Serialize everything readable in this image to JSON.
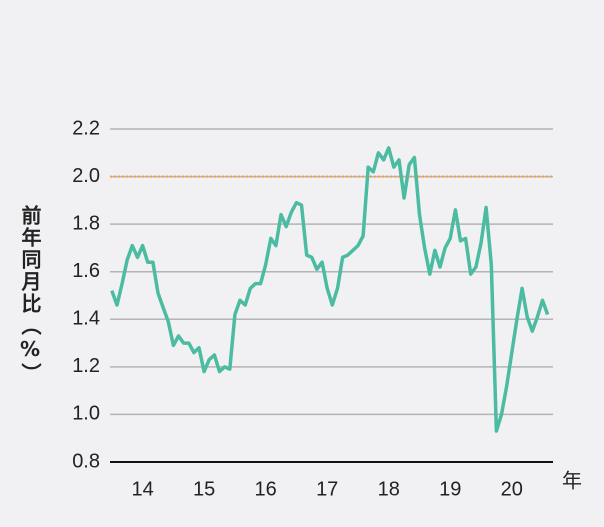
{
  "chart_data": {
    "type": "line",
    "y_label": "前年同月比（%）",
    "x_label": "年",
    "x": [
      14,
      14.083,
      14.167,
      14.25,
      14.333,
      14.417,
      14.5,
      14.583,
      14.667,
      14.75,
      14.833,
      14.917,
      15,
      15.083,
      15.167,
      15.25,
      15.333,
      15.417,
      15.5,
      15.583,
      15.667,
      15.75,
      15.833,
      15.917,
      16,
      16.083,
      16.167,
      16.25,
      16.333,
      16.417,
      16.5,
      16.583,
      16.667,
      16.75,
      16.833,
      16.917,
      17,
      17.083,
      17.167,
      17.25,
      17.333,
      17.417,
      17.5,
      17.583,
      17.667,
      17.75,
      17.833,
      17.917,
      18,
      18.083,
      18.167,
      18.25,
      18.333,
      18.417,
      18.5,
      18.583,
      18.667,
      18.75,
      18.833,
      18.917,
      19,
      19.083,
      19.167,
      19.25,
      19.333,
      19.417,
      19.5,
      19.583,
      19.667,
      19.75,
      19.833,
      19.917,
      20,
      20.083,
      20.167,
      20.25,
      20.333,
      20.417,
      20.5,
      20.583,
      20.667,
      20.75,
      20.833,
      20.917,
      21,
      21.083
    ],
    "series": [
      {
        "color": "#4bbba2",
        "values": [
          1.52,
          1.46,
          1.55,
          1.65,
          1.71,
          1.66,
          1.71,
          1.64,
          1.64,
          1.51,
          1.45,
          1.39,
          1.29,
          1.33,
          1.3,
          1.3,
          1.26,
          1.28,
          1.18,
          1.23,
          1.25,
          1.18,
          1.2,
          1.19,
          1.42,
          1.48,
          1.46,
          1.53,
          1.55,
          1.55,
          1.63,
          1.74,
          1.71,
          1.84,
          1.79,
          1.85,
          1.89,
          1.88,
          1.67,
          1.66,
          1.61,
          1.64,
          1.53,
          1.46,
          1.53,
          1.66,
          1.67,
          1.69,
          1.71,
          1.75,
          2.04,
          2.02,
          2.1,
          2.07,
          2.12,
          2.04,
          2.07,
          1.91,
          2.05,
          2.08,
          1.84,
          1.7,
          1.59,
          1.69,
          1.62,
          1.7,
          1.74,
          1.86,
          1.73,
          1.74,
          1.59,
          1.62,
          1.72,
          1.87,
          1.63,
          0.93,
          1.0,
          1.12,
          1.26,
          1.4,
          1.53,
          1.41,
          1.35,
          1.41,
          1.48,
          1.42
        ]
      }
    ],
    "reference_line": {
      "value": 2.0,
      "color": "#f0a04b"
    },
    "xlim": [
      13.97,
      21.17
    ],
    "xticks": [
      {
        "value": 14.5,
        "label": "14"
      },
      {
        "value": 15.5,
        "label": "15"
      },
      {
        "value": 16.5,
        "label": "16"
      },
      {
        "value": 17.5,
        "label": "17"
      },
      {
        "value": 18.5,
        "label": "18"
      },
      {
        "value": 19.5,
        "label": "19"
      },
      {
        "value": 20.5,
        "label": "20"
      }
    ],
    "ylim": [
      0.8,
      2.2
    ],
    "yticks": [
      {
        "value": 0.8,
        "label": "0.8"
      },
      {
        "value": 1.0,
        "label": "1.0"
      },
      {
        "value": 1.2,
        "label": "1.2"
      },
      {
        "value": 1.4,
        "label": "1.4"
      },
      {
        "value": 1.6,
        "label": "1.6"
      },
      {
        "value": 1.8,
        "label": "1.8"
      },
      {
        "value": 2.0,
        "label": "2.0"
      },
      {
        "value": 2.2,
        "label": "2.2"
      }
    ],
    "grid": true
  }
}
